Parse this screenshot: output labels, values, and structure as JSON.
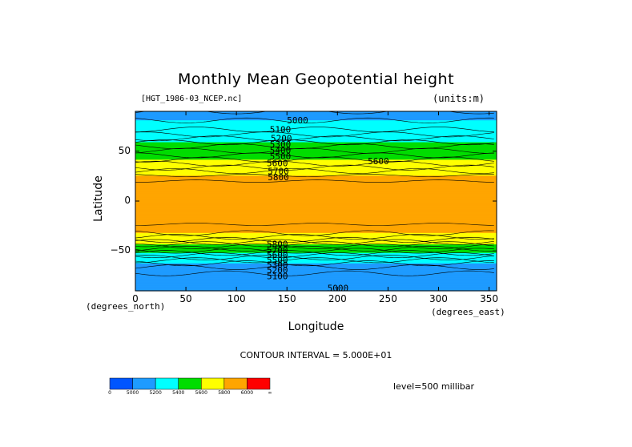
{
  "chart_data": {
    "type": "heatmap",
    "title": "Monthly Mean Geopotential height",
    "source_file": "[HGT_1986-03_NCEP.nc]",
    "units": "(units:m)",
    "xlabel": "Longitude",
    "ylabel": "Latitude",
    "x_unit_note": "(degrees_east)",
    "y_unit_note": "(degrees_north)",
    "xlim": [
      0,
      357.5
    ],
    "ylim": [
      -90,
      90
    ],
    "x_ticks": [
      "0",
      "50",
      "100",
      "150",
      "200",
      "250",
      "300",
      "350"
    ],
    "x_tick_values": [
      0,
      50,
      100,
      150,
      200,
      250,
      300,
      350
    ],
    "y_ticks": [
      "50",
      "0",
      "−50"
    ],
    "y_tick_values": [
      50,
      0,
      -50
    ],
    "contour_interval_text": "CONTOUR INTERVAL = 5.000E+01",
    "level_text": "level=500 millibar",
    "contour_labels": [
      {
        "text": "5000",
        "x": 150,
        "y": 81
      },
      {
        "text": "5100",
        "x": 133,
        "y": 72
      },
      {
        "text": "5200",
        "x": 134,
        "y": 63
      },
      {
        "text": "5300",
        "x": 133,
        "y": 57
      },
      {
        "text": "5400",
        "x": 133,
        "y": 51
      },
      {
        "text": "5500",
        "x": 133,
        "y": 45
      },
      {
        "text": "5600",
        "x": 130,
        "y": 38
      },
      {
        "text": "5700",
        "x": 131,
        "y": 30
      },
      {
        "text": "5800",
        "x": 131,
        "y": 24
      },
      {
        "text": "5600",
        "x": 230,
        "y": 40
      },
      {
        "text": "5800",
        "x": 130,
        "y": -43
      },
      {
        "text": "5700",
        "x": 130,
        "y": -49
      },
      {
        "text": "5600",
        "x": 130,
        "y": -54
      },
      {
        "text": "5500",
        "x": 130,
        "y": -59
      },
      {
        "text": "5300",
        "x": 130,
        "y": -64
      },
      {
        "text": "5200",
        "x": 130,
        "y": -69
      },
      {
        "text": "5100",
        "x": 130,
        "y": -75
      },
      {
        "text": "5000",
        "x": 190,
        "y": -87
      }
    ],
    "zonal_profile": [
      {
        "lat": 90,
        "value": 5150
      },
      {
        "lat": 70,
        "value": 5260
      },
      {
        "lat": 55,
        "value": 5450
      },
      {
        "lat": 45,
        "value": 5560
      },
      {
        "lat": 35,
        "value": 5680
      },
      {
        "lat": 28,
        "value": 5780
      },
      {
        "lat": 20,
        "value": 5850
      },
      {
        "lat": 0,
        "value": 5870
      },
      {
        "lat": -20,
        "value": 5860
      },
      {
        "lat": -30,
        "value": 5830
      },
      {
        "lat": -38,
        "value": 5720
      },
      {
        "lat": -45,
        "value": 5560
      },
      {
        "lat": -52,
        "value": 5400
      },
      {
        "lat": -58,
        "value": 5270
      },
      {
        "lat": -65,
        "value": 5160
      },
      {
        "lat": -75,
        "value": 5080
      },
      {
        "lat": -90,
        "value": 5100
      }
    ],
    "colorbar": {
      "bins": [
        {
          "label": "0",
          "color": "#0055ff"
        },
        {
          "label": "5000",
          "color": "#1e9bff"
        },
        {
          "label": "5200",
          "color": "#00ffff"
        },
        {
          "label": "5400",
          "color": "#00dd00"
        },
        {
          "label": "5600",
          "color": "#ffff00"
        },
        {
          "label": "5800",
          "color": "#ffa500"
        },
        {
          "label": "6000",
          "color": "#ff0000"
        }
      ],
      "end_label": "∞"
    }
  }
}
